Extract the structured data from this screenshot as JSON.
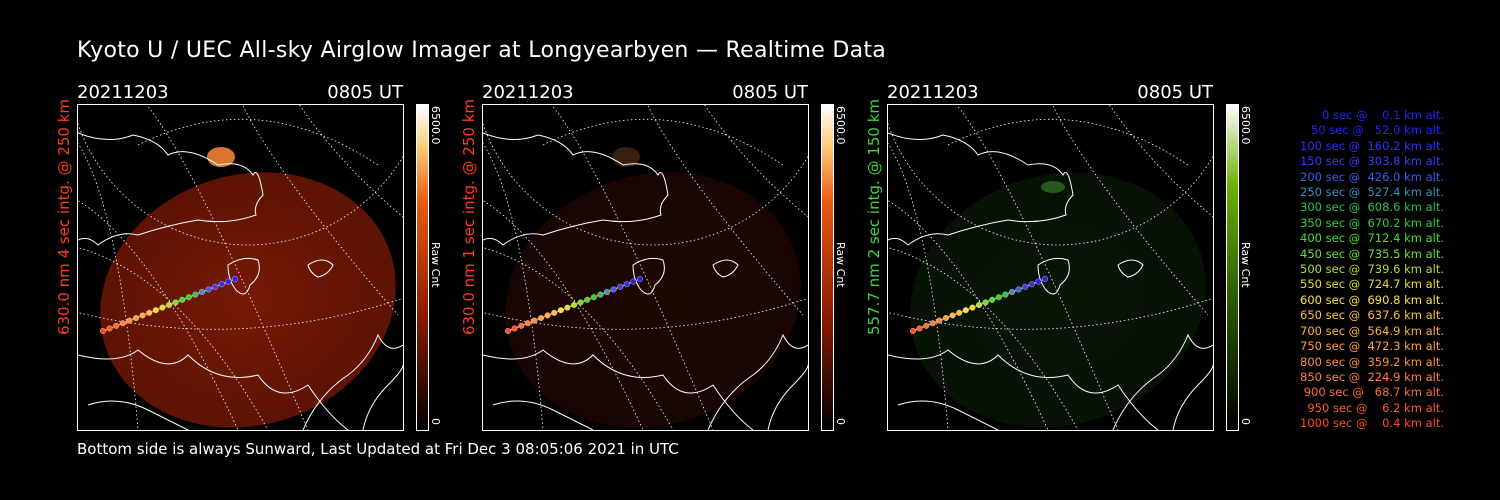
{
  "title": "Kyoto U / UEC All-sky Airglow Imager at Longyearbyen — Realtime Data",
  "footer": "Bottom side is always Sunward, Last Updated at Fri Dec  3 08:05:06 2021 in UTC",
  "panels": [
    {
      "date": "20211203",
      "time": "0805 UT",
      "label": "630.0 nm 4 sec intg. @ 250 km",
      "label_color": "#ff3b1f",
      "colorbar_max": "6500.0",
      "colorbar_unit": "Raw Cnt",
      "colorbar_min": "0",
      "colormap": "red",
      "glow_level": 0.85
    },
    {
      "date": "20211203",
      "time": "0805 UT",
      "label": "630.0 nm 1 sec intg. @ 250 km",
      "label_color": "#ff3b1f",
      "colorbar_max": "6500.0",
      "colorbar_unit": "Raw Cnt",
      "colorbar_min": "0",
      "colormap": "red",
      "glow_level": 0.22
    },
    {
      "date": "20211203",
      "time": "0805 UT",
      "label": "557.7 nm 2 sec intg. @ 150 km",
      "label_color": "#3ed43e",
      "colorbar_max": "6500.0",
      "colorbar_unit": "Raw Cnt",
      "colorbar_min": "0",
      "colormap": "green",
      "glow_level": 0.3
    }
  ],
  "legend": [
    {
      "text": "0 sec @    0.1 km alt.",
      "color": "#2222ff"
    },
    {
      "text": "50 sec @   52.0 km alt.",
      "color": "#2222ff"
    },
    {
      "text": "100 sec @  160.2 km alt.",
      "color": "#2f2fff"
    },
    {
      "text": "150 sec @  303.8 km alt.",
      "color": "#3a3aff"
    },
    {
      "text": "200 sec @  426.0 km alt.",
      "color": "#3e5cf0"
    },
    {
      "text": "250 sec @  527.4 km alt.",
      "color": "#3a8fc0"
    },
    {
      "text": "300 sec @  608.6 km alt.",
      "color": "#2fbf5a"
    },
    {
      "text": "350 sec @  670.2 km alt.",
      "color": "#30d030"
    },
    {
      "text": "400 sec @  712.4 km alt.",
      "color": "#40e030"
    },
    {
      "text": "450 sec @  735.5 km alt.",
      "color": "#70e030"
    },
    {
      "text": "500 sec @  739.6 km alt.",
      "color": "#b0e030"
    },
    {
      "text": "550 sec @  724.7 km alt.",
      "color": "#e0e030"
    },
    {
      "text": "600 sec @  690.8 km alt.",
      "color": "#ffe040"
    },
    {
      "text": "650 sec @  637.6 km alt.",
      "color": "#ffc040"
    },
    {
      "text": "700 sec @  564.9 km alt.",
      "color": "#ffb040"
    },
    {
      "text": "750 sec @  472.3 km alt.",
      "color": "#ffa040"
    },
    {
      "text": "800 sec @  359.2 km alt.",
      "color": "#ff9040"
    },
    {
      "text": "850 sec @  224.9 km alt.",
      "color": "#ff8040"
    },
    {
      "text": "900 sec @   68.7 km alt.",
      "color": "#ff6a3a"
    },
    {
      "text": "950 sec @    6.2 km alt.",
      "color": "#ff5a30"
    },
    {
      "text": "1000 sec @    0.4 km alt.",
      "color": "#ff4a2a"
    }
  ]
}
